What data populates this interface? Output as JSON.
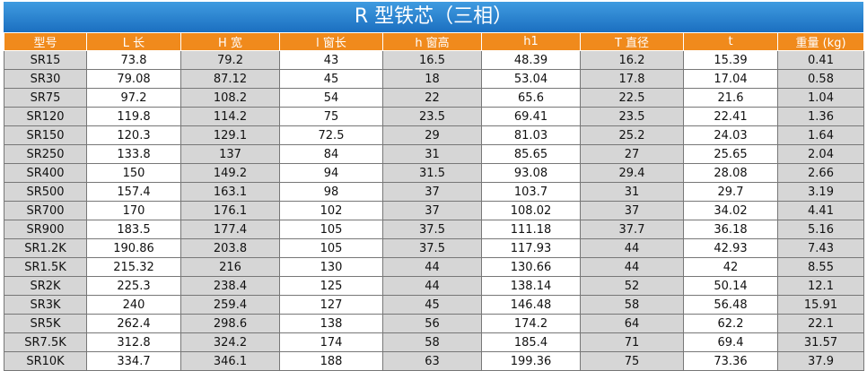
{
  "title": "R 型铁芯（三相）",
  "table": {
    "header": [
      "型号",
      "L 长",
      "H 宽",
      "l 窗长",
      "h 窗高",
      "h1",
      "T 直径",
      "t",
      "重量 (kg)"
    ],
    "rows": [
      [
        "SR15",
        "73.8",
        "79.2",
        "43",
        "16.5",
        "48.39",
        "16.2",
        "15.39",
        "0.41"
      ],
      [
        "SR30",
        "79.08",
        "87.12",
        "45",
        "18",
        "53.04",
        "17.8",
        "17.04",
        "0.58"
      ],
      [
        "SR75",
        "97.2",
        "108.2",
        "54",
        "22",
        "65.6",
        "22.5",
        "21.6",
        "1.04"
      ],
      [
        "SR120",
        "119.8",
        "114.2",
        "75",
        "23.5",
        "69.41",
        "23.5",
        "22.41",
        "1.36"
      ],
      [
        "SR150",
        "120.3",
        "129.1",
        "72.5",
        "29",
        "81.03",
        "25.2",
        "24.03",
        "1.64"
      ],
      [
        "SR250",
        "133.8",
        "137",
        "84",
        "31",
        "85.65",
        "27",
        "25.65",
        "2.04"
      ],
      [
        "SR400",
        "150",
        "149.2",
        "94",
        "31.5",
        "93.08",
        "29.4",
        "28.08",
        "2.66"
      ],
      [
        "SR500",
        "157.4",
        "163.1",
        "98",
        "37",
        "103.7",
        "31",
        "29.7",
        "3.19"
      ],
      [
        "SR700",
        "170",
        "176.1",
        "102",
        "37",
        "108.02",
        "37",
        "34.02",
        "4.41"
      ],
      [
        "SR900",
        "183.5",
        "177.4",
        "105",
        "37.5",
        "111.18",
        "37.7",
        "36.18",
        "5.16"
      ],
      [
        "SR1.2K",
        "190.86",
        "203.8",
        "105",
        "37.5",
        "117.93",
        "44",
        "42.93",
        "7.43"
      ],
      [
        "SR1.5K",
        "215.32",
        "216",
        "130",
        "44",
        "130.66",
        "44",
        "42",
        "8.55"
      ],
      [
        "SR2K",
        "225.3",
        "238.4",
        "125",
        "44",
        "138.14",
        "52",
        "50.14",
        "12.1"
      ],
      [
        "SR3K",
        "240",
        "259.4",
        "127",
        "45",
        "146.48",
        "58",
        "56.48",
        "15.91"
      ],
      [
        "SR5K",
        "262.4",
        "298.6",
        "138",
        "56",
        "174.2",
        "64",
        "62.2",
        "22.1"
      ],
      [
        "SR7.5K",
        "312.8",
        "324.2",
        "174",
        "58",
        "185.4",
        "71",
        "69.4",
        "31.57"
      ],
      [
        "SR10K",
        "334.7",
        "346.1",
        "188",
        "63",
        "199.36",
        "75",
        "73.36",
        "37.9"
      ]
    ]
  }
}
